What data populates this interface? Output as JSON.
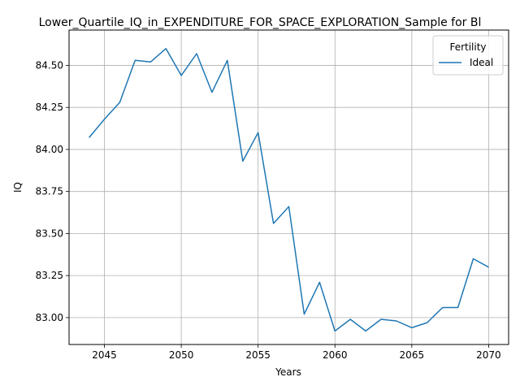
{
  "chart_data": {
    "type": "line",
    "title": "Lower_Quartile_IQ_in_EXPENDITURE_FOR_SPACE_EXPLORATION_Sample for Bl",
    "xlabel": "Years",
    "ylabel": "IQ",
    "xlim": [
      2042.7,
      2071.3
    ],
    "ylim": [
      82.84,
      84.71
    ],
    "x_ticks": [
      2045,
      2050,
      2055,
      2060,
      2065,
      2070
    ],
    "y_ticks": [
      83.0,
      83.25,
      83.5,
      83.75,
      84.0,
      84.25,
      84.5
    ],
    "grid": true,
    "legend": {
      "title": "Fertility",
      "placement": "top-right"
    },
    "series": [
      {
        "name": "Ideal",
        "color": "#1f77b4",
        "x": [
          2044,
          2045,
          2046,
          2047,
          2048,
          2049,
          2050,
          2051,
          2052,
          2053,
          2054,
          2055,
          2056,
          2057,
          2058,
          2059,
          2060,
          2061,
          2062,
          2063,
          2064,
          2065,
          2066,
          2067,
          2068,
          2069,
          2070
        ],
        "y": [
          84.07,
          84.18,
          84.28,
          84.53,
          84.52,
          84.6,
          84.44,
          84.57,
          84.34,
          84.53,
          83.93,
          84.1,
          83.56,
          83.66,
          83.02,
          83.21,
          82.92,
          82.99,
          82.92,
          82.99,
          82.98,
          82.94,
          82.97,
          83.06,
          83.06,
          83.35,
          83.3
        ]
      }
    ]
  }
}
